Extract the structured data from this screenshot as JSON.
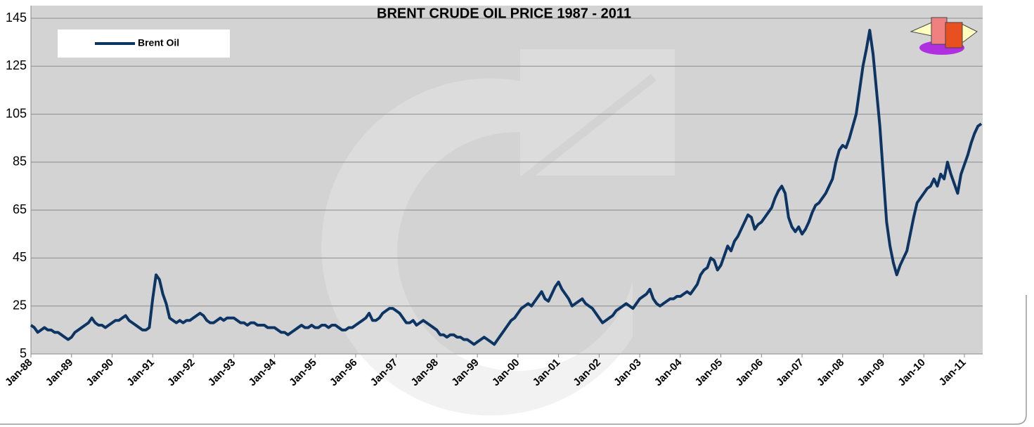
{
  "chart_data": {
    "type": "line",
    "title": "BRENT CRUDE OIL PRICE 1987 - 2011",
    "categories": [
      "Jan-88",
      null,
      null,
      null,
      null,
      null,
      null,
      null,
      null,
      null,
      null,
      null,
      "Jan-89",
      null,
      null,
      null,
      null,
      null,
      null,
      null,
      null,
      null,
      null,
      null,
      "Jan-90",
      null,
      null,
      null,
      null,
      null,
      null,
      null,
      null,
      null,
      null,
      null,
      "Jan-91",
      null,
      null,
      null,
      null,
      null,
      null,
      null,
      null,
      null,
      null,
      null,
      "Jan-92",
      null,
      null,
      null,
      null,
      null,
      null,
      null,
      null,
      null,
      null,
      null,
      "Jan-93",
      null,
      null,
      null,
      null,
      null,
      null,
      null,
      null,
      null,
      null,
      null,
      "Jan-94",
      null,
      null,
      null,
      null,
      null,
      null,
      null,
      null,
      null,
      null,
      null,
      "Jan-95",
      null,
      null,
      null,
      null,
      null,
      null,
      null,
      null,
      null,
      null,
      null,
      "Jan-96",
      null,
      null,
      null,
      null,
      null,
      null,
      null,
      null,
      null,
      null,
      null,
      "Jan-97",
      null,
      null,
      null,
      null,
      null,
      null,
      null,
      null,
      null,
      null,
      null,
      "Jan-98",
      null,
      null,
      null,
      null,
      null,
      null,
      null,
      null,
      null,
      null,
      null,
      "Jan-99",
      null,
      null,
      null,
      null,
      null,
      null,
      null,
      null,
      null,
      null,
      null,
      "Jan-00",
      null,
      null,
      null,
      null,
      null,
      null,
      null,
      null,
      null,
      null,
      null,
      "Jan-01",
      null,
      null,
      null,
      null,
      null,
      null,
      null,
      null,
      null,
      null,
      null,
      "Jan-02",
      null,
      null,
      null,
      null,
      null,
      null,
      null,
      null,
      null,
      null,
      null,
      "Jan-03",
      null,
      null,
      null,
      null,
      null,
      null,
      null,
      null,
      null,
      null,
      null,
      "Jan-04",
      null,
      null,
      null,
      null,
      null,
      null,
      null,
      null,
      null,
      null,
      null,
      "Jan-05",
      null,
      null,
      null,
      null,
      null,
      null,
      null,
      null,
      null,
      null,
      null,
      "Jan-06",
      null,
      null,
      null,
      null,
      null,
      null,
      null,
      null,
      null,
      null,
      null,
      "Jan-07",
      null,
      null,
      null,
      null,
      null,
      null,
      null,
      null,
      null,
      null,
      null,
      "Jan-08",
      null,
      null,
      null,
      null,
      null,
      null,
      null,
      null,
      null,
      null,
      null,
      "Jan-09",
      null,
      null,
      null,
      null,
      null,
      null,
      null,
      null,
      null,
      null,
      null,
      "Jan-10",
      null,
      null,
      null,
      null,
      null,
      null,
      null,
      null,
      null,
      null,
      null,
      "Jan-11",
      null,
      null,
      null,
      null,
      null
    ],
    "series": [
      {
        "name": "Brent Oil",
        "color": "#0d3563",
        "values": [
          17,
          16,
          14,
          15,
          16,
          15,
          15,
          14,
          14,
          13,
          12,
          11,
          12,
          14,
          15,
          16,
          17,
          18,
          20,
          18,
          17,
          17,
          16,
          17,
          18,
          19,
          19,
          20,
          21,
          19,
          18,
          17,
          16,
          15,
          15,
          16,
          28,
          38,
          36,
          30,
          26,
          20,
          19,
          18,
          19,
          18,
          19,
          19,
          20,
          21,
          22,
          21,
          19,
          18,
          18,
          19,
          20,
          19,
          20,
          20,
          20,
          19,
          18,
          18,
          17,
          18,
          18,
          17,
          17,
          17,
          16,
          16,
          16,
          15,
          14,
          14,
          13,
          14,
          15,
          16,
          17,
          16,
          16,
          17,
          16,
          16,
          17,
          17,
          16,
          17,
          17,
          16,
          15,
          15,
          16,
          16,
          17,
          18,
          19,
          20,
          22,
          19,
          19,
          20,
          22,
          23,
          24,
          24,
          23,
          22,
          20,
          18,
          18,
          19,
          17,
          18,
          19,
          18,
          17,
          16,
          15,
          13,
          13,
          12,
          13,
          13,
          12,
          12,
          11,
          11,
          10,
          9,
          10,
          11,
          12,
          11,
          10,
          9,
          11,
          13,
          15,
          17,
          19,
          20,
          22,
          24,
          25,
          26,
          25,
          27,
          29,
          31,
          28,
          27,
          30,
          33,
          35,
          32,
          30,
          28,
          25,
          26,
          27,
          28,
          26,
          25,
          24,
          22,
          20,
          18,
          19,
          20,
          21,
          23,
          24,
          25,
          26,
          25,
          24,
          26,
          28,
          29,
          30,
          32,
          28,
          26,
          25,
          26,
          27,
          28,
          28,
          29,
          29,
          30,
          31,
          30,
          32,
          34,
          38,
          40,
          41,
          45,
          44,
          40,
          42,
          46,
          50,
          48,
          52,
          54,
          57,
          60,
          63,
          62,
          57,
          59,
          60,
          62,
          64,
          66,
          70,
          73,
          75,
          72,
          62,
          58,
          56,
          58,
          55,
          57,
          60,
          64,
          67,
          68,
          70,
          72,
          75,
          78,
          85,
          90,
          92,
          91,
          95,
          100,
          105,
          115,
          125,
          132,
          140,
          130,
          115,
          100,
          80,
          60,
          50,
          43,
          38,
          42,
          45,
          48,
          55,
          62,
          68,
          70,
          72,
          74,
          75,
          78,
          75,
          80,
          78,
          85,
          80,
          76,
          72,
          80,
          84,
          88,
          93,
          97,
          100,
          101
        ]
      }
    ],
    "ylim": [
      5,
      145
    ],
    "yticks": [
      5,
      25,
      45,
      65,
      85,
      105,
      125,
      145
    ],
    "grid": true,
    "legend": "upper left"
  }
}
